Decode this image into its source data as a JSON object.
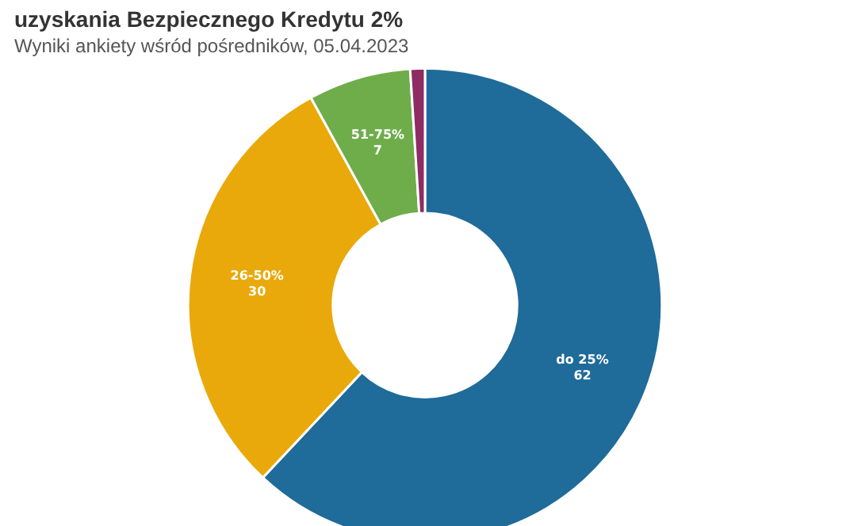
{
  "chart_data": {
    "type": "donut",
    "title": "uzyskania Bezpiecznego Kredytu 2%",
    "subtitle": "Wyniki ankiety wśród pośredników, 05.04.2023",
    "categories": [
      "do 25%",
      "26-50%",
      "51-75%",
      null
    ],
    "values": [
      62,
      30,
      7,
      1
    ],
    "colors": [
      "#1f6b99",
      "#e9a90b",
      "#6fad4b",
      "#8e2c63"
    ],
    "value_labels": [
      "62",
      "30",
      "7",
      null
    ]
  }
}
